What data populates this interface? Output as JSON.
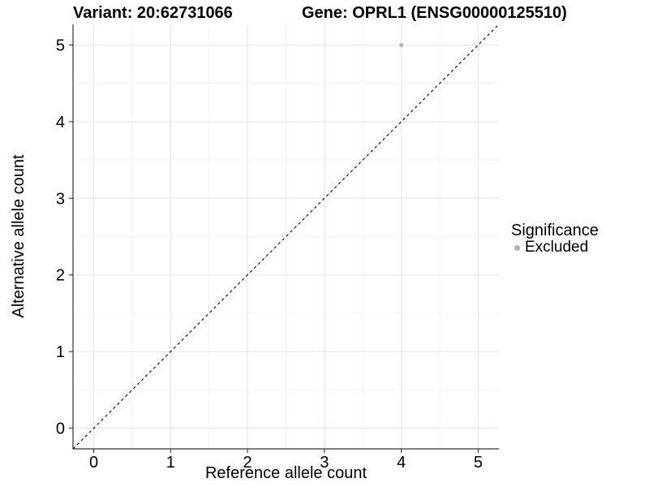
{
  "chart_data": {
    "type": "scatter",
    "titles": {
      "left": "Variant: 20:62731066",
      "right": "Gene: OPRL1 (ENSG00000125510)"
    },
    "xlabel": "Reference allele count",
    "ylabel": "Alternative allele count",
    "xlim": [
      -0.27,
      5.27
    ],
    "ylim": [
      -0.27,
      5.27
    ],
    "xticks": [
      0,
      1,
      2,
      3,
      4,
      5
    ],
    "yticks": [
      0,
      1,
      2,
      3,
      4,
      5
    ],
    "minor_gridlines_at": [
      0.5,
      1.5,
      2.5,
      3.5,
      4.5
    ],
    "grid": true,
    "identity_line": {
      "equation": "y = x",
      "style": "dashed",
      "color": "#000000"
    },
    "series": [
      {
        "name": "Excluded",
        "color": "#b5b5b5",
        "points": [
          {
            "x": 4,
            "y": 5
          }
        ]
      }
    ],
    "legend": {
      "title": "Significance",
      "position": "right",
      "entries": [
        {
          "label": "Excluded",
          "color": "#b0b0b0"
        }
      ]
    },
    "colors": {
      "grid_major": "#e4e4e4",
      "grid_minor": "#f2f2f2",
      "axis_line": "#333333",
      "tick_mark": "#333333",
      "text": "#000000",
      "background": "#ffffff"
    }
  }
}
